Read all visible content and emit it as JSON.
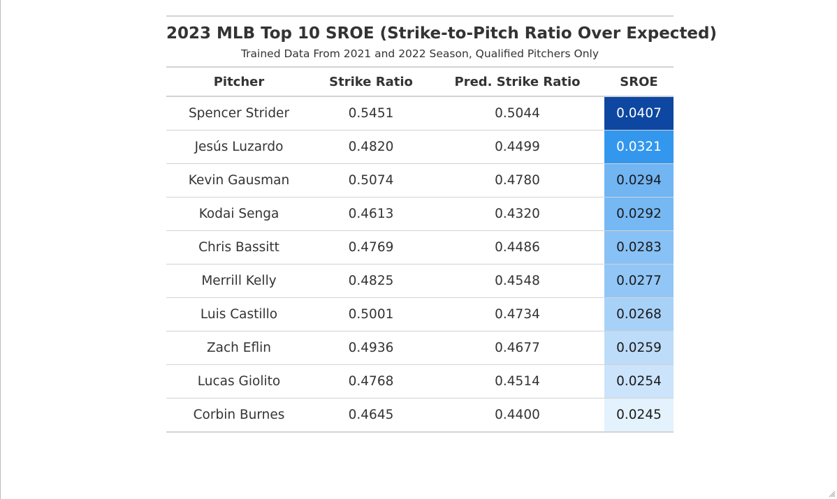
{
  "chart_data": {
    "type": "table",
    "title": "2023 MLB Top 10 SROE (Strike-to-Pitch Ratio Over Expected)",
    "subtitle": "Trained Data From 2021 and 2022 Season, Qualified Pitchers Only",
    "columns": [
      "Pitcher",
      "Strike Ratio",
      "Pred. Strike Ratio",
      "SROE"
    ],
    "rows": [
      {
        "pitcher": "Spencer Strider",
        "strike_ratio": "0.5451",
        "pred_strike_ratio": "0.5044",
        "sroe": "0.0407",
        "sroe_bg": "#0d47a1",
        "sroe_fg": "#ffffff"
      },
      {
        "pitcher": "Jesús Luzardo",
        "strike_ratio": "0.4820",
        "pred_strike_ratio": "0.4499",
        "sroe": "0.0321",
        "sroe_bg": "#3397ee",
        "sroe_fg": "#ffffff"
      },
      {
        "pitcher": "Kevin Gausman",
        "strike_ratio": "0.5074",
        "pred_strike_ratio": "0.4780",
        "sroe": "0.0294",
        "sroe_bg": "#71b5f3",
        "sroe_fg": "#1a1a1a"
      },
      {
        "pitcher": "Kodai Senga",
        "strike_ratio": "0.4613",
        "pred_strike_ratio": "0.4320",
        "sroe": "0.0292",
        "sroe_bg": "#76b8f4",
        "sroe_fg": "#1a1a1a"
      },
      {
        "pitcher": "Chris Bassitt",
        "strike_ratio": "0.4769",
        "pred_strike_ratio": "0.4486",
        "sroe": "0.0283",
        "sroe_bg": "#87c1f5",
        "sroe_fg": "#1a1a1a"
      },
      {
        "pitcher": "Merrill Kelly",
        "strike_ratio": "0.4825",
        "pred_strike_ratio": "0.4548",
        "sroe": "0.0277",
        "sroe_bg": "#92c6f6",
        "sroe_fg": "#1a1a1a"
      },
      {
        "pitcher": "Luis Castillo",
        "strike_ratio": "0.5001",
        "pred_strike_ratio": "0.4734",
        "sroe": "0.0268",
        "sroe_bg": "#a8d1f8",
        "sroe_fg": "#1a1a1a"
      },
      {
        "pitcher": "Zach Eflin",
        "strike_ratio": "0.4936",
        "pred_strike_ratio": "0.4677",
        "sroe": "0.0259",
        "sroe_bg": "#bddcf9",
        "sroe_fg": "#1a1a1a"
      },
      {
        "pitcher": "Lucas Giolito",
        "strike_ratio": "0.4768",
        "pred_strike_ratio": "0.4514",
        "sroe": "0.0254",
        "sroe_bg": "#cbe3fb",
        "sroe_fg": "#1a1a1a"
      },
      {
        "pitcher": "Corbin Burnes",
        "strike_ratio": "0.4645",
        "pred_strike_ratio": "0.4400",
        "sroe": "0.0245",
        "sroe_bg": "#e3f2fd",
        "sroe_fg": "#1a1a1a"
      }
    ]
  },
  "icons": {
    "resize_grip": "resize-grip-icon"
  },
  "colors": {
    "rule": "#d3d3d3",
    "text": "#333333",
    "scale_high": "#0d47a1",
    "scale_low": "#e3f2fd"
  }
}
